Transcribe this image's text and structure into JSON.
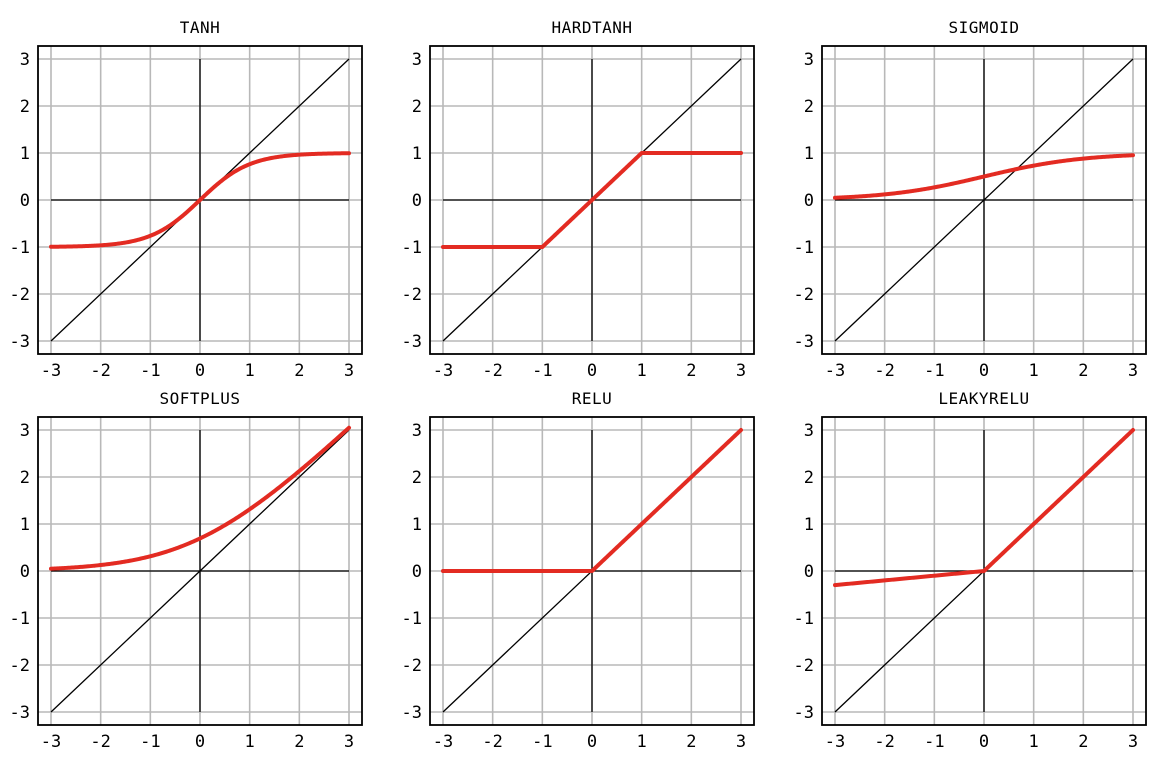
{
  "chart_data": [
    {
      "type": "line",
      "title": "TANH",
      "function": "tanh",
      "xlim": [
        -3,
        3
      ],
      "ylim": [
        -3,
        3
      ],
      "xticks": [
        "-3",
        "-2",
        "-1",
        "0",
        "1",
        "2",
        "3"
      ],
      "yticks": [
        "3",
        "2",
        "1",
        "0",
        "-1",
        "-2",
        "-3"
      ],
      "grid": true,
      "series": [
        {
          "x": [
            -3,
            -2.5,
            -2,
            -1.5,
            -1,
            -0.5,
            0,
            0.5,
            1,
            1.5,
            2,
            2.5,
            3
          ],
          "y": [
            -0.995,
            -0.987,
            -0.964,
            -0.905,
            -0.762,
            -0.462,
            0,
            0.462,
            0.762,
            0.905,
            0.964,
            0.987,
            0.995
          ]
        },
        {
          "x": [
            -3,
            3
          ],
          "y": [
            -3,
            3
          ]
        }
      ]
    },
    {
      "type": "line",
      "title": "HARDTANH",
      "function": "hardtanh",
      "xlim": [
        -3,
        3
      ],
      "ylim": [
        -3,
        3
      ],
      "xticks": [
        "-3",
        "-2",
        "-1",
        "0",
        "1",
        "2",
        "3"
      ],
      "yticks": [
        "3",
        "2",
        "1",
        "0",
        "-1",
        "-2",
        "-3"
      ],
      "grid": true,
      "series": [
        {
          "x": [
            -3,
            -1,
            0,
            1,
            3
          ],
          "y": [
            -1,
            -1,
            0,
            1,
            1
          ]
        },
        {
          "x": [
            -3,
            3
          ],
          "y": [
            -3,
            3
          ]
        }
      ]
    },
    {
      "type": "line",
      "title": "SIGMOID",
      "function": "sigmoid",
      "xlim": [
        -3,
        3
      ],
      "ylim": [
        -3,
        3
      ],
      "xticks": [
        "-3",
        "-2",
        "-1",
        "0",
        "1",
        "2",
        "3"
      ],
      "yticks": [
        "3",
        "2",
        "1",
        "0",
        "-1",
        "-2",
        "-3"
      ],
      "grid": true,
      "series": [
        {
          "x": [
            -3,
            -2,
            -1,
            0,
            1,
            2,
            3
          ],
          "y": [
            0.047,
            0.119,
            0.269,
            0.5,
            0.731,
            0.881,
            0.953
          ]
        },
        {
          "x": [
            -3,
            3
          ],
          "y": [
            -3,
            3
          ]
        }
      ]
    },
    {
      "type": "line",
      "title": "SOFTPLUS",
      "function": "softplus",
      "xlim": [
        -3,
        3
      ],
      "ylim": [
        -3,
        3
      ],
      "xticks": [
        "-3",
        "-2",
        "-1",
        "0",
        "1",
        "2",
        "3"
      ],
      "yticks": [
        "3",
        "2",
        "1",
        "0",
        "-1",
        "-2",
        "-3"
      ],
      "grid": true,
      "series": [
        {
          "x": [
            -3,
            -2,
            -1,
            0,
            1,
            2,
            3
          ],
          "y": [
            0.049,
            0.127,
            0.313,
            0.693,
            1.313,
            2.127,
            3.049
          ]
        },
        {
          "x": [
            -3,
            3
          ],
          "y": [
            -3,
            3
          ]
        }
      ]
    },
    {
      "type": "line",
      "title": "RELU",
      "function": "relu",
      "xlim": [
        -3,
        3
      ],
      "ylim": [
        -3,
        3
      ],
      "xticks": [
        "-3",
        "-2",
        "-1",
        "0",
        "1",
        "2",
        "3"
      ],
      "yticks": [
        "3",
        "2",
        "1",
        "0",
        "-1",
        "-2",
        "-3"
      ],
      "grid": true,
      "series": [
        {
          "x": [
            -3,
            0,
            3
          ],
          "y": [
            0,
            0,
            3
          ]
        },
        {
          "x": [
            -3,
            3
          ],
          "y": [
            -3,
            3
          ]
        }
      ]
    },
    {
      "type": "line",
      "title": "LEAKYRELU",
      "function": "leakyrelu",
      "xlim": [
        -3,
        3
      ],
      "ylim": [
        -3,
        3
      ],
      "xticks": [
        "-3",
        "-2",
        "-1",
        "0",
        "1",
        "2",
        "3"
      ],
      "yticks": [
        "3",
        "2",
        "1",
        "0",
        "-1",
        "-2",
        "-3"
      ],
      "grid": true,
      "series": [
        {
          "x": [
            -3,
            0,
            3
          ],
          "y": [
            -0.3,
            0,
            3
          ]
        },
        {
          "x": [
            -3,
            3
          ],
          "y": [
            -3,
            3
          ]
        }
      ]
    }
  ],
  "colors": {
    "function_line": "#e32b22",
    "identity_line": "#000000",
    "grid": "#b8b8b8",
    "axes": "#000000"
  }
}
